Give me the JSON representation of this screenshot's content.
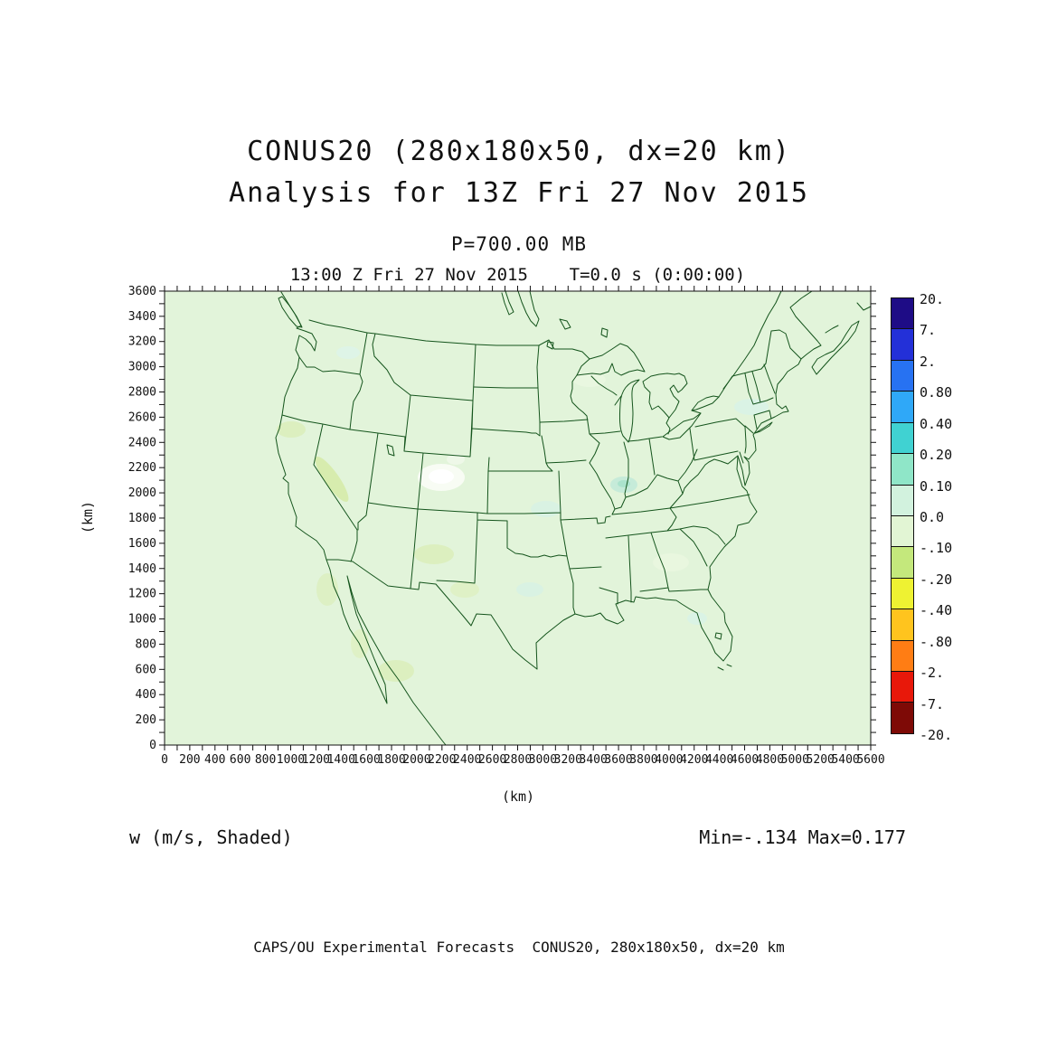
{
  "header": {
    "title_line1": "CONUS20 (280x180x50, dx=20 km)",
    "title_line2": "Analysis for 13Z Fri 27 Nov 2015",
    "pressure_level": "P=700.00 MB",
    "valid_time": "13:00 Z Fri 27 Nov 2015    T=0.0 s (0:00:00)"
  },
  "plot": {
    "x_axis_label": "(km)",
    "y_axis_label": "(km)",
    "x_max": 5600,
    "y_max": 3600,
    "tick_label_step": 200,
    "tick_minor_step": 100,
    "field_label": "w (m/s, Shaded)",
    "stats": "Min=-.134 Max=0.177",
    "base_fill": "#e2f4da",
    "map_line_color": "#14541c",
    "frame_color": "#111111"
  },
  "colorbar": {
    "labels": [
      "20.",
      "7.",
      "2.",
      "0.80",
      "0.40",
      "0.20",
      "0.10",
      "0.0",
      "-.10",
      "-.20",
      "-.40",
      "-.80",
      "-2.",
      "-7.",
      "-20."
    ],
    "colors": [
      "#1e0c86",
      "#2330d8",
      "#2772f2",
      "#2fa8f8",
      "#40d2d2",
      "#8fe6c8",
      "#d2f2de",
      "#e2f5d4",
      "#c4e87c",
      "#eef232",
      "#ffc41e",
      "#ff7d14",
      "#e8180a",
      "#7e0a06"
    ]
  },
  "footer": {
    "text": "CAPS/OU Experimental Forecasts  CONUS20, 280x180x50, dx=20 km"
  },
  "chart_data": {
    "type": "heatmap",
    "title": "13:00 Z Fri 27 Nov 2015    T=0.0 s (0:00:00)",
    "suptitle": [
      "CONUS20 (280x180x50, dx=20 km)",
      "Analysis for 13Z Fri 27 Nov 2015"
    ],
    "level_title": "P=700.00 MB",
    "field": "w (m/s, Shaded)",
    "xlabel": "(km)",
    "ylabel": "(km)",
    "xlim": [
      0,
      5600
    ],
    "ylim": [
      0,
      3600
    ],
    "x_tick_step": 200,
    "y_tick_step": 200,
    "grid": false,
    "legend_position": "right",
    "shading_levels": [
      -20,
      -7,
      -2,
      -0.8,
      -0.4,
      -0.2,
      -0.1,
      0.0,
      0.1,
      0.2,
      0.4,
      0.8,
      2,
      7,
      20
    ],
    "field_min": -0.134,
    "field_max": 0.177,
    "description": "Vertical velocity w at 700 mb over CONUS; field is near zero everywhere (pale green 0 to -0.10 band) with a small positive white/pale patch over Colorado, faint cyan patches (0 to 0.10) over the Ohio valley, plains and Texas, and faint yellow-green patches (-0.10 to -0.20) over the Sierra Nevada, New Mexico and northern Mexico.",
    "basemap": "US state boundaries, Canada and Mexico coastlines, Great Lakes"
  }
}
